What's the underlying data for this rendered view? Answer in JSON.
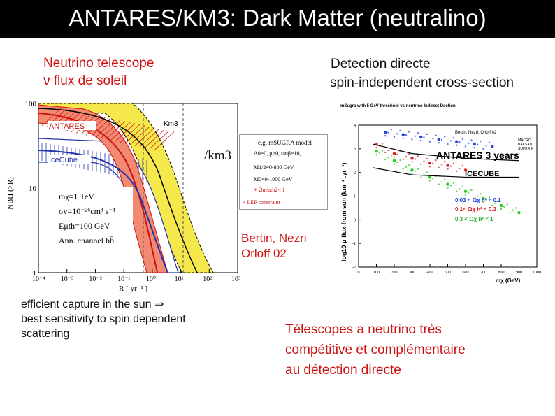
{
  "title": "ANTARES/KM3: Dark Matter (neutralino)",
  "left_heading": {
    "line1": "Neutrino telescope",
    "line2": "ν flux de soleil"
  },
  "right_heading": {
    "line1": "Detection directe",
    "line2": "spin-independent cross-section"
  },
  "km3_label": "/km3",
  "model_box": {
    "title": "e.g. mSUGRA model",
    "lines": [
      "A0=0, μ>0, tanβ=10,",
      "M1/2=0-800 GeV,",
      "M0=0-1000 GeV",
      "+ Ωneuth2< 1",
      "+ LEP constraint"
    ]
  },
  "citation": {
    "line1": "Bertin, Nezri",
    "line2": "Orloff 02"
  },
  "bottom_left": {
    "line1": "efficient capture in the sun ⇒",
    "line2": "best sensitivity to spin dependent",
    "line3": "scattering"
  },
  "bottom_right": {
    "line1": "Télescopes a neutrino très",
    "line2": "compétitive et complémentaire",
    "line3": "au détection directe"
  },
  "colors": {
    "red": "#cc1111",
    "yellow": "#f5e84a",
    "salmon": "#f28a72",
    "blue": "#2233aa"
  },
  "left_plot_text": {
    "ylabel": "NBH (>R)",
    "xlabel": "R [ yr⁻¹ ]",
    "antares": "ANTARES",
    "icecube": "IceCube",
    "km3": "Km3",
    "m": "mχ=1 TeV",
    "sigma": "σv=10⁻²⁶cm³ s⁻¹",
    "eth": "Eμth=100 GeV",
    "ann": "Ann. channel bb̄"
  },
  "right_plot_text": {
    "title": "mSugra with 5 GeV threshold vs neutrino Indirect Dection",
    "authors": "Bertin, Nezri, Orloff 02",
    "antares": "ANTARES 3 years",
    "icecube": "ICECUBE",
    "macro": [
      "MACRO",
      "BAKSAN",
      "SUPER K"
    ],
    "ylabel": "log10 μ flux from sun (km⁻² .yr⁻¹)",
    "xlabel": "mχ (GeV)",
    "legend": [
      "0.03 < Ωχ h² < 0.1",
      "0.1< Ωχ h² < 0.3",
      "0.3 < Ωχ h² < 1"
    ]
  },
  "chart_data": [
    {
      "type": "line",
      "scale": "log-log",
      "xlabel": "R [ yr⁻¹ ]",
      "ylabel": "NBH (>R)",
      "x_ticks": [
        "10⁻⁴",
        "10⁻³",
        "10⁻²",
        "10⁻¹",
        "10⁰",
        "10¹",
        "10²",
        "10³"
      ],
      "y_ticks": [
        "100",
        "10",
        "1"
      ],
      "xlim": [
        0.0001,
        1000
      ],
      "ylim": [
        1,
        100
      ],
      "series": [
        {
          "name": "ANTARES",
          "color": "#cc1111",
          "x": [
            0.0001,
            0.01,
            0.1,
            0.3,
            1,
            3,
            10
          ],
          "y": [
            90,
            80,
            50,
            25,
            8,
            2,
            1
          ]
        },
        {
          "name": "IceCube",
          "color": "#2233aa",
          "x": [
            0.0001,
            0.1,
            1,
            3,
            10,
            30,
            100
          ],
          "y": [
            40,
            35,
            25,
            14,
            6,
            2,
            1
          ]
        },
        {
          "name": "Km3",
          "color": "#d4b800",
          "x": [
            0.0001,
            1,
            10,
            30,
            100,
            300
          ],
          "y": [
            100,
            60,
            30,
            12,
            4,
            1
          ]
        }
      ]
    },
    {
      "type": "scatter",
      "title": "mSugra with 5 GeV threshold vs neutrino Indirect Dection",
      "xlabel": "mχ (GeV)",
      "ylabel": "log10 μ flux from sun (km⁻² .yr⁻¹)",
      "xlim": [
        0,
        1000
      ],
      "ylim": [
        -2,
        4
      ],
      "x_ticks": [
        0,
        100,
        200,
        300,
        400,
        500,
        600,
        700,
        800,
        900,
        1000
      ],
      "y_ticks": [
        -2,
        -1,
        0,
        1,
        2,
        3,
        4
      ],
      "series": [
        {
          "name": "0.03 < Ωχ h² < 0.1",
          "color": "#2244dd",
          "x": [
            150,
            250,
            350,
            450,
            550,
            650,
            750
          ],
          "y": [
            3.7,
            3.6,
            3.5,
            3.4,
            3.3,
            3.2,
            3.1
          ]
        },
        {
          "name": "0.1< Ωχ h² < 0.3",
          "color": "#dd2222",
          "x": [
            100,
            200,
            300,
            400,
            500,
            600
          ],
          "y": [
            3.2,
            2.8,
            2.6,
            2.4,
            2.3,
            2.1
          ]
        },
        {
          "name": "0.3 < Ωχ h² < 1",
          "color": "#22cc22",
          "x": [
            100,
            200,
            300,
            400,
            500,
            600,
            700,
            800,
            900
          ],
          "y": [
            2.9,
            2.5,
            2.1,
            1.8,
            1.5,
            1.2,
            0.9,
            0.6,
            0.3
          ]
        }
      ],
      "reference_lines": [
        {
          "name": "ANTARES 3 years",
          "x": [
            80,
            300,
            600,
            900
          ],
          "y": [
            3.2,
            2.8,
            2.6,
            2.5
          ]
        },
        {
          "name": "ICECUBE",
          "x": [
            80,
            300,
            600,
            900
          ],
          "y": [
            2.2,
            1.9,
            1.8,
            1.8
          ]
        }
      ]
    }
  ]
}
